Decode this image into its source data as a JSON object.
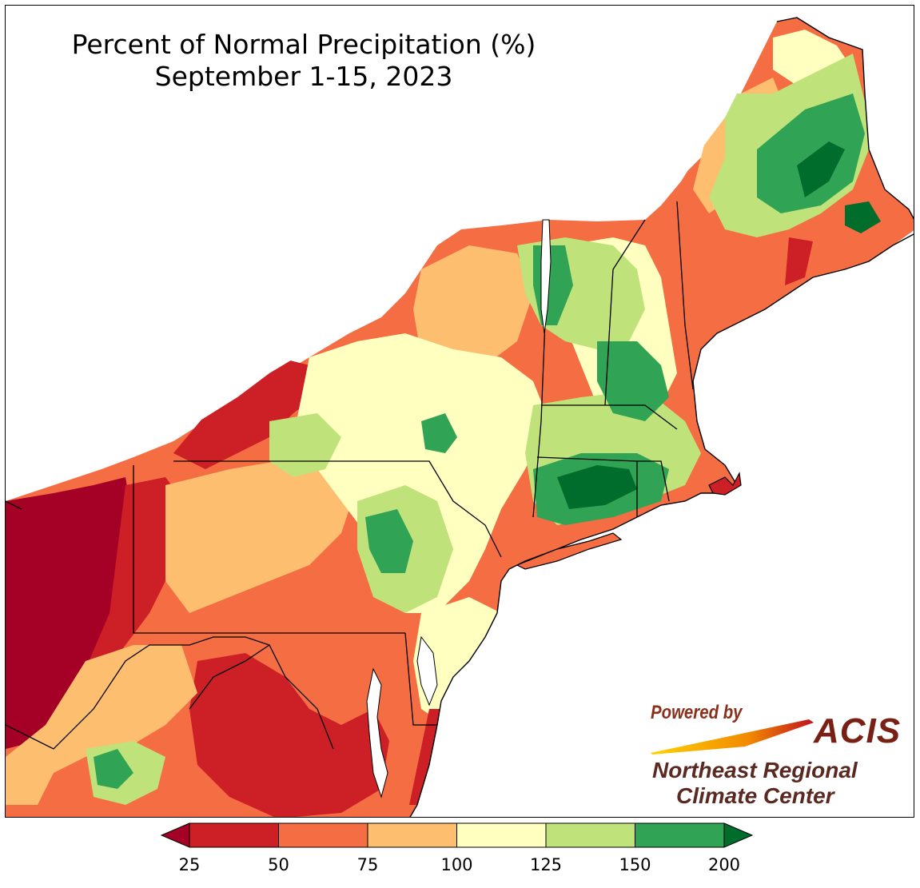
{
  "title": {
    "line1": "Percent of Normal Precipitation (%)",
    "line2": "September 1-15, 2023"
  },
  "credit": {
    "powered_by": "Powered by",
    "acis": "ACIS",
    "org_line1": "Northeast Regional",
    "org_line2": "Climate Center"
  },
  "legend": {
    "ticks": [
      "25",
      "50",
      "75",
      "100",
      "125",
      "150",
      "200"
    ],
    "colors": {
      "lt25": "#a50026",
      "25_50": "#cc1f26",
      "50_75": "#f46d43",
      "75_100": "#fdbe6f",
      "100_125": "#ffffc0",
      "125_150": "#bfe37a",
      "150_200": "#31a354",
      "gt200": "#006d2c"
    }
  },
  "colors": {
    "water": "#ffffff",
    "border": "#000000"
  }
}
